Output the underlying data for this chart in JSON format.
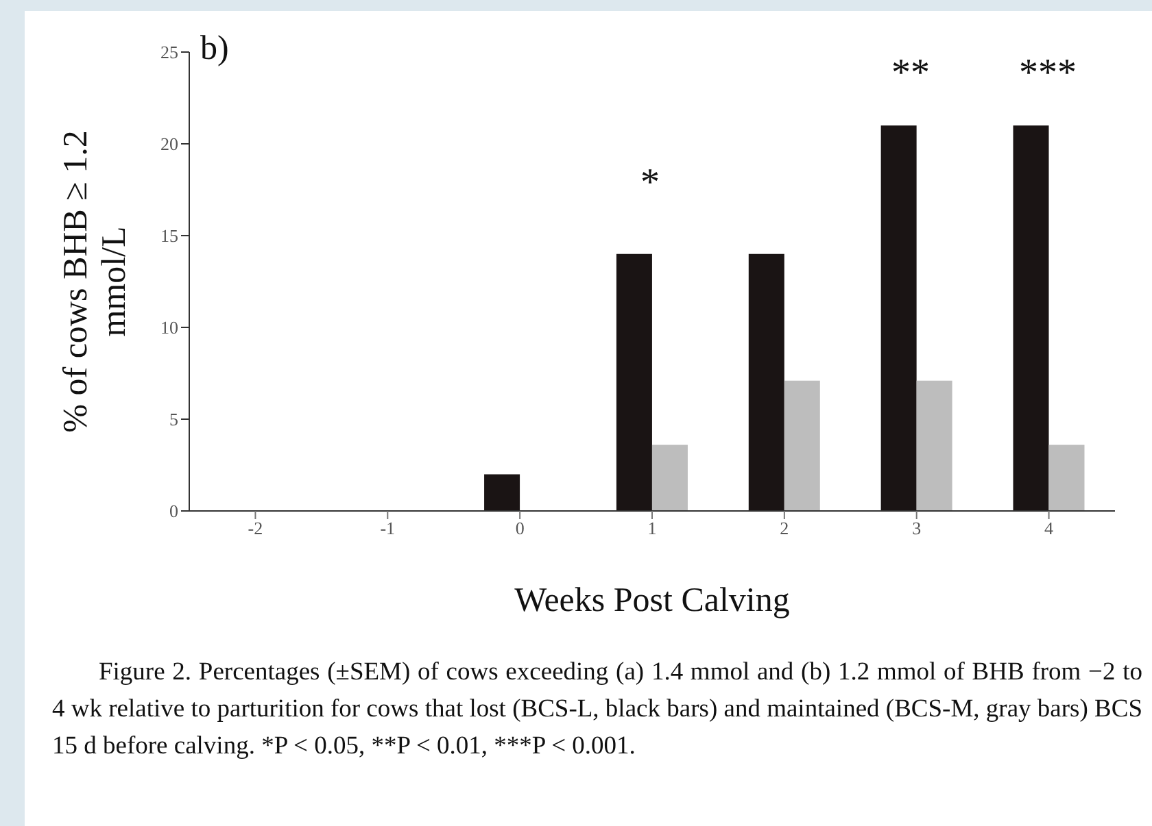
{
  "chart_data": {
    "type": "bar",
    "ylabel": "% of cows BHB ≥ 1.2 mmol/L",
    "xlabel": "Weeks Post Calving",
    "categories": [
      "-2",
      "-1",
      "0",
      "1",
      "2",
      "3",
      "4"
    ],
    "series": [
      {
        "color": "#1a1414",
        "values": [
          0,
          0,
          2,
          14,
          14,
          21,
          21
        ]
      },
      {
        "color": "#bdbdbd",
        "values": [
          0,
          0,
          0,
          3.6,
          7.1,
          7.1,
          3.6
        ]
      }
    ],
    "ylim": [
      0,
      25
    ],
    "yticks": [
      0,
      5,
      10,
      15,
      20,
      25
    ],
    "annotations": [
      "b)",
      "*",
      "**",
      "***",
      "Figure 2. Percentages (±SEM) of cows exceeding (a) 1.4 mmol and (b) 1.2 mmol of BHB from −2 to 4 wk relative to parturition for cows that lost (BCS-L, black bars) and maintained (BCS-M, gray bars) BCS 15 d before calving. *P < 0.05, **P < 0.01, ***P < 0.001."
    ]
  }
}
